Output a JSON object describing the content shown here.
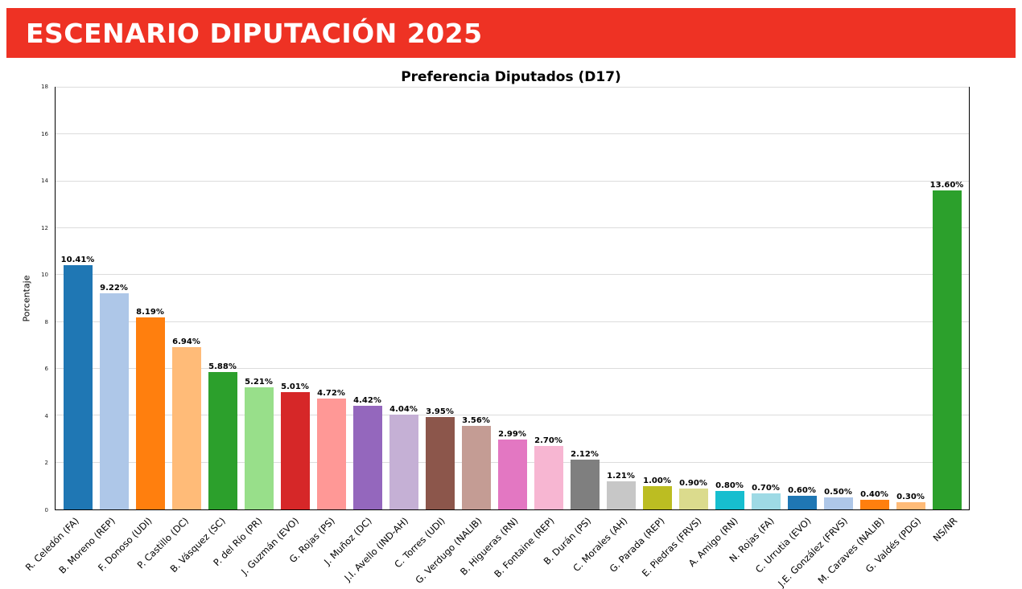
{
  "banner": {
    "title": "ESCENARIO DIPUTACIÓN 2025",
    "bg_color": "#ee3224",
    "text_color": "#ffffff"
  },
  "chart_data": {
    "type": "bar",
    "title": "Preferencia Diputados (D17)",
    "xlabel": "",
    "ylabel": "Porcentaje",
    "ylim": [
      0,
      18
    ],
    "yticks": [
      0,
      2,
      4,
      6,
      8,
      10,
      12,
      14,
      16,
      18
    ],
    "grid": true,
    "legend": "none",
    "categories": [
      "R. Celedón (FA)",
      "B. Moreno (REP)",
      "F. Donoso (UDI)",
      "P. Castillo (DC)",
      "B. Vásquez (SC)",
      "P. del Río (PR)",
      "J. Guzmán (EVO)",
      "G. Rojas (PS)",
      "J. Muñoz (DC)",
      "J.I. Avello (IND-AH)",
      "C. Torres (UDI)",
      "G. Verdugo (NALIB)",
      "B. Higueras (RN)",
      "B. Fontaine (REP)",
      "B. Durán (PS)",
      "C. Morales (AH)",
      "G. Parada (REP)",
      "E. Piedras (FRVS)",
      "A. Amigo (RN)",
      "N. Rojas (FA)",
      "C. Urrutia (EVO)",
      "J.E. González (FRVS)",
      "M. Caraves (NALIB)",
      "G. Valdés (PDG)",
      "NS/NR"
    ],
    "values": [
      10.41,
      9.22,
      8.19,
      6.94,
      5.88,
      5.21,
      5.01,
      4.72,
      4.42,
      4.04,
      3.95,
      3.56,
      2.99,
      2.7,
      2.12,
      1.21,
      1.0,
      0.9,
      0.8,
      0.7,
      0.6,
      0.5,
      0.4,
      0.3,
      13.6
    ],
    "value_labels": [
      "10.41%",
      "9.22%",
      "8.19%",
      "6.94%",
      "5.88%",
      "5.21%",
      "5.01%",
      "4.72%",
      "4.42%",
      "4.04%",
      "3.95%",
      "3.56%",
      "2.99%",
      "2.70%",
      "2.12%",
      "1.21%",
      "1.00%",
      "0.90%",
      "0.80%",
      "0.70%",
      "0.60%",
      "0.50%",
      "0.40%",
      "0.30%",
      "13.60%"
    ],
    "colors": [
      "#1f77b4",
      "#aec7e8",
      "#ff7f0e",
      "#ffbb78",
      "#2ca02c",
      "#98df8a",
      "#d62728",
      "#ff9896",
      "#9467bd",
      "#c5b0d5",
      "#8c564b",
      "#c49c94",
      "#e377c2",
      "#f7b6d2",
      "#7f7f7f",
      "#c7c7c7",
      "#bcbd22",
      "#dbdb8d",
      "#17becf",
      "#9edae5",
      "#1f77b4",
      "#aec7e8",
      "#ff7f0e",
      "#ffbb78",
      "#2ca02c"
    ],
    "gridline_color": "#dcdcdc"
  }
}
